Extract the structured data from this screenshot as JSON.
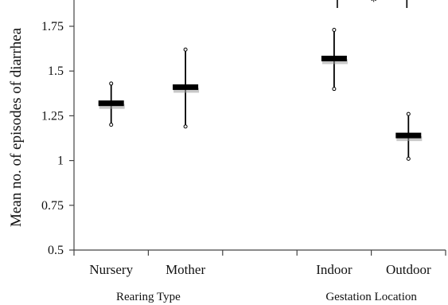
{
  "chart_data": {
    "type": "error-bar",
    "ylabel": "Mean no. of episodes of diarrhea",
    "xlabel": "",
    "ylim": [
      0.5,
      1.85
    ],
    "yticks": [
      0.5,
      0.75,
      1,
      1.25,
      1.5,
      1.75
    ],
    "ytick_labels": [
      "0.5",
      "0.75",
      "1",
      "1.25",
      "1.5",
      "1.75"
    ],
    "categories": [
      "Nursery",
      "Mother",
      "",
      "Indoor",
      "Outdoor"
    ],
    "groups": [
      {
        "label": "Rearing Type",
        "categories": [
          "Nursery",
          "Mother"
        ]
      },
      {
        "label": "Gestation Location",
        "categories": [
          "Indoor",
          "Outdoor"
        ]
      }
    ],
    "series": [
      {
        "points": [
          {
            "category": "Nursery",
            "mean": 1.32,
            "low": 1.2,
            "high": 1.43
          },
          {
            "category": "Mother",
            "mean": 1.41,
            "low": 1.19,
            "high": 1.62
          },
          {
            "category": "Indoor",
            "mean": 1.57,
            "low": 1.4,
            "high": 1.73
          },
          {
            "category": "Outdoor",
            "mean": 1.14,
            "low": 1.01,
            "high": 1.26
          }
        ]
      }
    ],
    "annotations": [
      {
        "type": "significance-bracket",
        "from": "Indoor",
        "to": "Outdoor",
        "text": "*"
      }
    ],
    "grid": false,
    "legend": "none"
  }
}
